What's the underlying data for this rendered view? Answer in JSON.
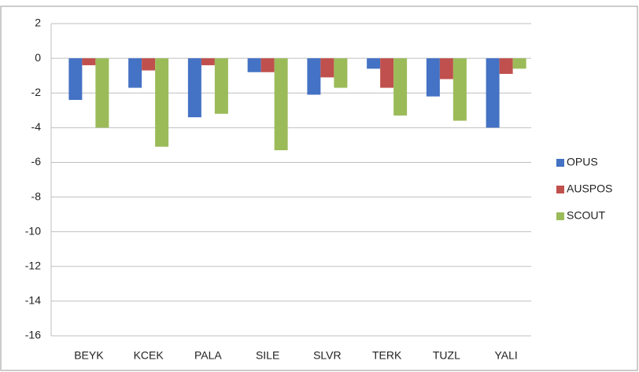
{
  "chart_data": {
    "type": "bar",
    "categories": [
      "BEYK",
      "KCEK",
      "PALA",
      "SILE",
      "SLVR",
      "TERK",
      "TUZL",
      "YALI"
    ],
    "series": [
      {
        "name": "OPUS",
        "color": "#4472c4",
        "values": [
          -2.4,
          -1.7,
          -3.4,
          -0.8,
          -2.1,
          -0.6,
          -2.2,
          -4.0
        ]
      },
      {
        "name": "AUSPOS",
        "color": "#c0504d",
        "values": [
          -0.4,
          -0.7,
          -0.4,
          -0.8,
          -1.1,
          -1.7,
          -1.2,
          -0.9
        ]
      },
      {
        "name": "SCOUT",
        "color": "#9bbb59",
        "values": [
          -4.0,
          -5.1,
          -3.2,
          -5.3,
          -1.7,
          -3.3,
          -3.6,
          -0.6
        ]
      }
    ],
    "ylim": [
      -16,
      2
    ],
    "yticks": [
      -16,
      -14,
      -12,
      -10,
      -8,
      -6,
      -4,
      -2,
      0,
      2
    ],
    "grid": true,
    "legend": "right"
  }
}
